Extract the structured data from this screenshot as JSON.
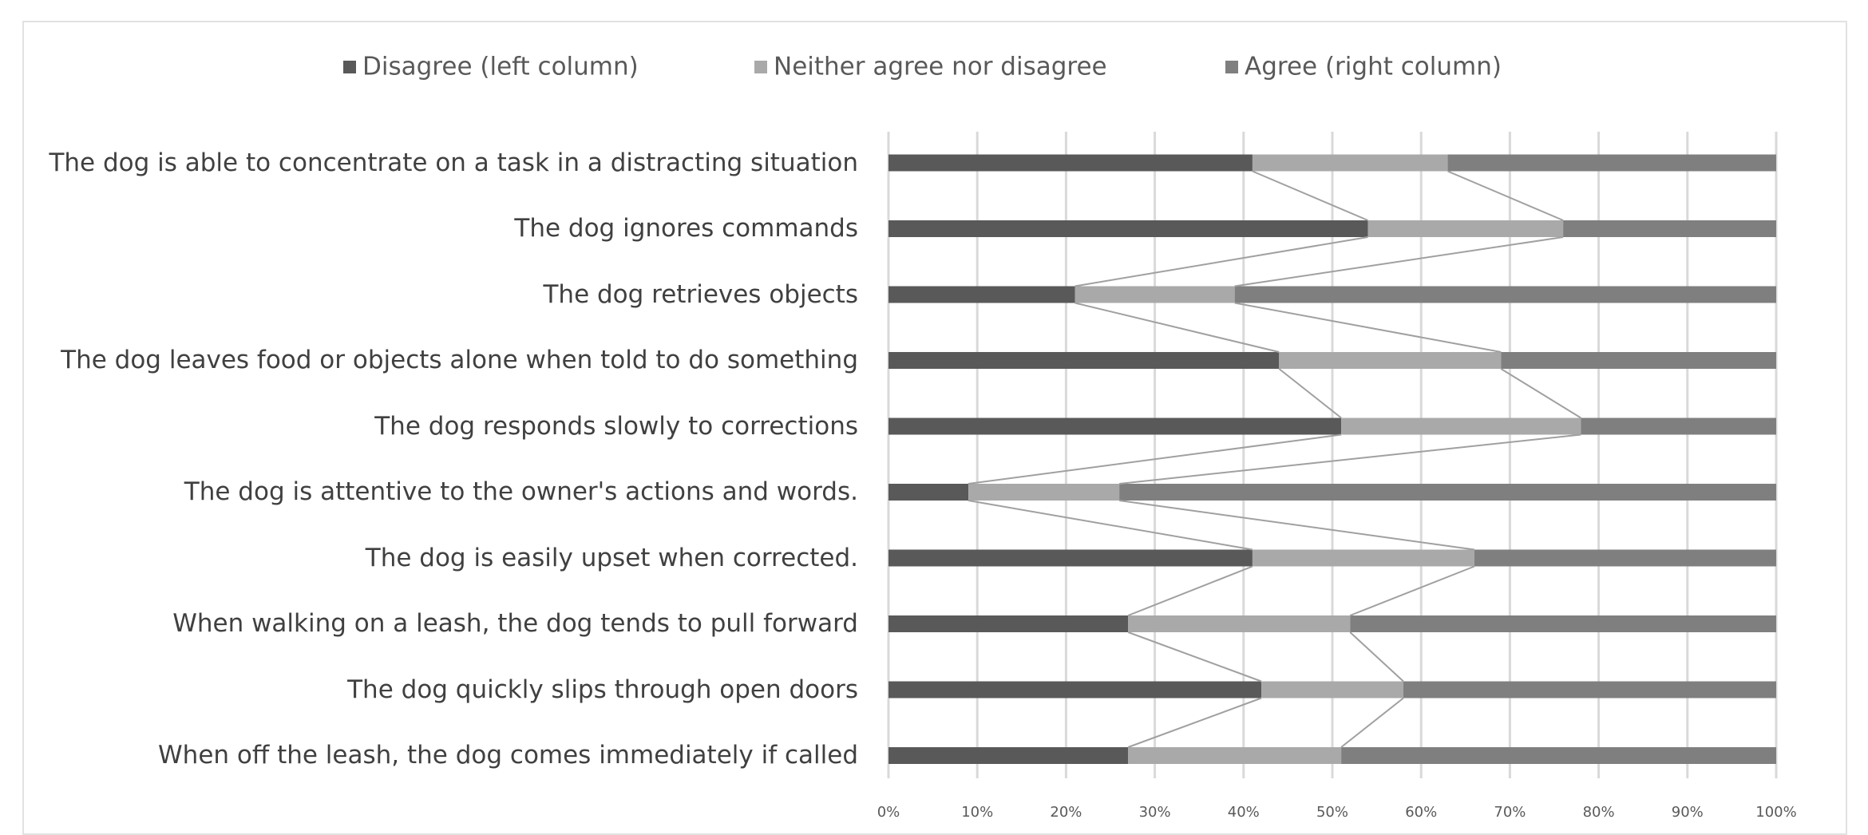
{
  "chart_data": {
    "type": "stacked-bar-horizontal",
    "categories": [
      "The dog is able to concentrate on a task in a distracting situation",
      "The dog ignores commands",
      "The dog retrieves objects",
      "The dog leaves food or objects alone when told to do something",
      "The dog responds slowly to corrections",
      "The dog is attentive to the owner's actions and words.",
      "The dog is easily upset when corrected.",
      "When walking on a leash, the dog tends to pull forward",
      "The dog quickly slips through open doors",
      "When off the leash, the dog comes immediately if called"
    ],
    "series": [
      {
        "name": "Disagree (left column)",
        "color": "#595959",
        "values": [
          41,
          54,
          21,
          44,
          51,
          9,
          41,
          27,
          42,
          27
        ]
      },
      {
        "name": "Neither agree nor disagree",
        "color": "#a9a9a9",
        "values": [
          22,
          22,
          18,
          25,
          27,
          17,
          25,
          25,
          16,
          24
        ]
      },
      {
        "name": "Agree (right column)",
        "color": "#7f7f7f",
        "values": [
          37,
          24,
          61,
          31,
          22,
          74,
          34,
          48,
          42,
          49
        ]
      }
    ],
    "xlim": [
      0,
      100
    ],
    "xticks": [
      {
        "value": 0,
        "label": "0%"
      },
      {
        "value": 10,
        "label": "10%"
      },
      {
        "value": 20,
        "label": "20%"
      },
      {
        "value": 30,
        "label": "30%"
      },
      {
        "value": 40,
        "label": "40%"
      },
      {
        "value": 50,
        "label": "50%"
      },
      {
        "value": 60,
        "label": "60%"
      },
      {
        "value": 70,
        "label": "70%"
      },
      {
        "value": 80,
        "label": "80%"
      },
      {
        "value": 90,
        "label": "90%"
      },
      {
        "value": 100,
        "label": "100%"
      }
    ],
    "grid": true,
    "series_lines": true,
    "legend": "top"
  }
}
